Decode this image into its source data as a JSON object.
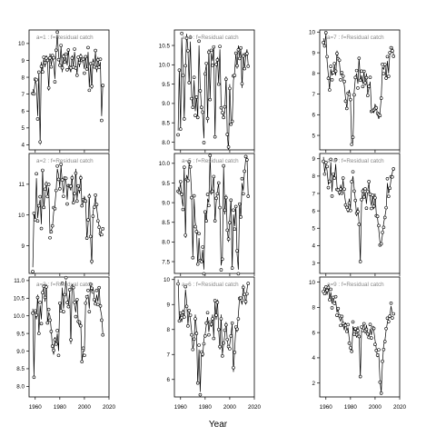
{
  "xlabel": "Year",
  "chart_data": [
    {
      "type": "line",
      "panel_label": "a=1 : f=Residual catch",
      "xlim": [
        1955,
        2020
      ],
      "ylim": [
        3.7,
        10.8
      ],
      "yticks": [
        4,
        5,
        6,
        7,
        8,
        9,
        10
      ],
      "xticks": [
        1960,
        1980,
        2000,
        2020
      ],
      "x": [
        1958,
        1959,
        1960,
        1961,
        1962,
        1963,
        1964,
        1965,
        1966,
        1967,
        1968,
        1969,
        1970,
        1971,
        1972,
        1973,
        1974,
        1975,
        1976,
        1977,
        1978,
        1979,
        1980,
        1981,
        1982,
        1983,
        1984,
        1985,
        1986,
        1987,
        1988,
        1989,
        1990,
        1991,
        1992,
        1993,
        1994,
        1995,
        1996,
        1997,
        1998,
        1999,
        2000,
        2001,
        2002,
        2003,
        2004,
        2005,
        2006,
        2007,
        2008,
        2009,
        2010,
        2011,
        2012,
        2013,
        2014,
        2015
      ],
      "y": [
        7.3,
        7.1,
        7.8,
        7.6,
        5.7,
        8.3,
        4.0,
        8.9,
        8.4,
        9.1,
        8.6,
        9.3,
        9.0,
        7.2,
        9.4,
        8.7,
        9.2,
        8.9,
        7.9,
        9.6,
        10.5,
        9.3,
        8.8,
        9.8,
        8.3,
        9.4,
        8.9,
        9.2,
        8.7,
        9.7,
        8.5,
        8.3,
        9.3,
        8.6,
        9.5,
        8.8,
        8.2,
        9.1,
        8.6,
        9.4,
        9.0,
        8.9,
        8.5,
        9.3,
        8.4,
        9.5,
        7.4,
        8.8,
        7.3,
        9.1,
        8.7,
        9.5,
        8.3,
        9.2,
        8.6,
        8.9,
        5.7,
        7.6
      ]
    },
    {
      "type": "line",
      "panel_label": "a=4 : f=Residual catch",
      "xlim": [
        1955,
        2020
      ],
      "ylim": [
        7.8,
        10.9
      ],
      "yticks": [
        8.0,
        8.5,
        9.0,
        9.5,
        10.0,
        10.5
      ],
      "xticks": [
        1960,
        1980,
        2000,
        2020
      ],
      "x": [
        1958,
        1959,
        1960,
        1961,
        1962,
        1963,
        1964,
        1965,
        1966,
        1967,
        1968,
        1969,
        1970,
        1971,
        1972,
        1973,
        1974,
        1975,
        1976,
        1977,
        1978,
        1979,
        1980,
        1981,
        1982,
        1983,
        1984,
        1985,
        1986,
        1987,
        1988,
        1989,
        1990,
        1991,
        1992,
        1993,
        1994,
        1995,
        1996,
        1997,
        1998,
        1999,
        2000,
        2001,
        2002,
        2003,
        2004,
        2005,
        2006,
        2007,
        2008,
        2009,
        2010,
        2011,
        2012,
        2013,
        2014,
        2015
      ],
      "y": [
        8.3,
        9.9,
        8.3,
        10.7,
        9.8,
        8.6,
        9.9,
        10.8,
        10.4,
        9.5,
        10.6,
        9.2,
        8.9,
        9.6,
        8.8,
        9.2,
        8.6,
        10.5,
        9.4,
        8.9,
        8.7,
        8.1,
        9.8,
        10.0,
        8.5,
        10.4,
        9.1,
        10.3,
        10.1,
        10.5,
        8.1,
        9.9,
        10.2,
        9.5,
        10.4,
        9.0,
        8.8,
        8.6,
        8.8,
        9.7,
        8.2,
        7.8,
        9.5,
        8.5,
        8.5,
        9.6,
        9.8,
        10.3,
        9.9,
        10.5,
        10.2,
        10.4,
        9.4,
        10.3,
        9.9,
        10.2,
        10.4,
        10.0
      ]
    },
    {
      "type": "line",
      "panel_label": "a=7 : f=Residual catch",
      "xlim": [
        1955,
        2020
      ],
      "ylim": [
        4.3,
        10.1
      ],
      "yticks": [
        5,
        6,
        7,
        8,
        9,
        10
      ],
      "xticks": [
        1960,
        1980,
        2000,
        2020
      ],
      "x": [
        1958,
        1959,
        1960,
        1961,
        1962,
        1963,
        1964,
        1965,
        1966,
        1967,
        1968,
        1969,
        1970,
        1971,
        1972,
        1973,
        1974,
        1975,
        1976,
        1977,
        1978,
        1979,
        1980,
        1981,
        1982,
        1983,
        1984,
        1985,
        1986,
        1987,
        1988,
        1989,
        1990,
        1991,
        1992,
        1993,
        1994,
        1995,
        1996,
        1997,
        1998,
        1999,
        2000,
        2001,
        2002,
        2003,
        2004,
        2005,
        2006,
        2007,
        2008,
        2009,
        2010,
        2011,
        2012,
        2013,
        2014,
        2015
      ],
      "y": [
        9.7,
        9.4,
        9.9,
        8.6,
        7.9,
        7.2,
        8.2,
        7.9,
        8.1,
        8.4,
        7.9,
        9.1,
        8.7,
        8.5,
        7.9,
        8.1,
        7.8,
        7.4,
        6.8,
        6.3,
        6.9,
        7.2,
        6.8,
        4.5,
        4.7,
        7.1,
        7.8,
        8.0,
        7.5,
        8.8,
        7.6,
        7.9,
        7.5,
        8.1,
        7.4,
        8.0,
        7.0,
        7.3,
        7.6,
        6.3,
        6.2,
        6.1,
        6.5,
        6.4,
        6.0,
        5.8,
        6.1,
        6.8,
        8.3,
        8.2,
        8.5,
        7.7,
        8.6,
        8.0,
        9.0,
        9.1,
        9.3,
        8.9
      ]
    },
    {
      "type": "line",
      "panel_label": "a=2 : f=Residual catch",
      "xlim": [
        1955,
        2020
      ],
      "ylim": [
        8.1,
        12.0
      ],
      "yticks": [
        9,
        10,
        11
      ],
      "xticks": [
        1960,
        1980,
        2000,
        2020
      ],
      "x": [
        1958,
        1959,
        1960,
        1961,
        1962,
        1963,
        1964,
        1965,
        1966,
        1967,
        1968,
        1969,
        1970,
        1971,
        1972,
        1973,
        1974,
        1975,
        1976,
        1977,
        1978,
        1979,
        1980,
        1981,
        1982,
        1983,
        1984,
        1985,
        1986,
        1987,
        1988,
        1989,
        1990,
        1991,
        1992,
        1993,
        1994,
        1995,
        1996,
        1997,
        1998,
        1999,
        2000,
        2001,
        2002,
        2003,
        2004,
        2005,
        2006,
        2007,
        2008,
        2009,
        2010,
        2011,
        2012,
        2013,
        2014,
        2015
      ],
      "y": [
        8.3,
        10.1,
        9.8,
        11.2,
        9.9,
        10.3,
        10.5,
        9.7,
        11.5,
        10.2,
        10.7,
        11.1,
        10.6,
        10.9,
        9.4,
        9.5,
        9.6,
        10.1,
        10.3,
        10.8,
        11.5,
        11.3,
        10.9,
        11.6,
        11.0,
        10.7,
        11.2,
        11.1,
        10.5,
        11.0,
        10.9,
        10.8,
        11.3,
        10.4,
        10.6,
        11.5,
        10.5,
        10.9,
        10.7,
        11.3,
        10.3,
        10.4,
        10.6,
        10.5,
        9.2,
        9.7,
        10.7,
        9.3,
        8.4,
        10.1,
        10.3,
        10.6,
        10.2,
        9.9,
        9.6,
        9.3,
        9.5,
        9.6
      ]
    },
    {
      "type": "line",
      "panel_label": "a=5 : f=Residual catch",
      "xlim": [
        1955,
        2020
      ],
      "ylim": [
        7.2,
        10.25
      ],
      "yticks": [
        7.5,
        8.0,
        8.5,
        9.0,
        9.5,
        10.0
      ],
      "xticks": [
        1960,
        1980,
        2000,
        2020
      ],
      "x": [
        1958,
        1959,
        1960,
        1961,
        1962,
        1963,
        1964,
        1965,
        1966,
        1967,
        1968,
        1969,
        1970,
        1971,
        1972,
        1973,
        1974,
        1975,
        1976,
        1977,
        1978,
        1979,
        1980,
        1981,
        1982,
        1983,
        1984,
        1985,
        1986,
        1987,
        1988,
        1989,
        1990,
        1991,
        1992,
        1993,
        1994,
        1995,
        1996,
        1997,
        1998,
        1999,
        2000,
        2001,
        2002,
        2003,
        2004,
        2005,
        2006,
        2007,
        2008,
        2009,
        2010,
        2011,
        2012,
        2013,
        2014,
        2015
      ],
      "y": [
        9.4,
        9.3,
        9.5,
        9.1,
        8.9,
        9.9,
        8.1,
        9.7,
        9.6,
        10.0,
        9.8,
        9.2,
        7.6,
        9.1,
        8.5,
        8.3,
        7.4,
        8.1,
        7.6,
        7.5,
        7.8,
        7.3,
        8.8,
        8.5,
        9.1,
        9.0,
        10.2,
        9.2,
        9.4,
        9.7,
        8.5,
        9.0,
        9.3,
        9.5,
        8.8,
        7.4,
        7.6,
        9.9,
        8.7,
        9.2,
        8.3,
        8.0,
        8.6,
        9.1,
        7.3,
        8.7,
        8.4,
        8.9,
        7.7,
        7.3,
        9.0,
        8.6,
        9.5,
        9.3,
        9.8,
        10.1,
        10.2,
        9.2
      ]
    },
    {
      "type": "line",
      "panel_label": "a=8 : f=Residual catch",
      "xlim": [
        1955,
        2020
      ],
      "ylim": [
        2.4,
        9.3
      ],
      "yticks": [
        3,
        4,
        5,
        6,
        7,
        8,
        9
      ],
      "xticks": [
        1960,
        1980,
        2000,
        2020
      ],
      "x": [
        1958,
        1959,
        1960,
        1961,
        1962,
        1963,
        1964,
        1965,
        1966,
        1967,
        1968,
        1969,
        1970,
        1971,
        1972,
        1973,
        1974,
        1975,
        1976,
        1977,
        1978,
        1979,
        1980,
        1981,
        1982,
        1983,
        1984,
        1985,
        1986,
        1987,
        1988,
        1989,
        1990,
        1991,
        1992,
        1993,
        1994,
        1995,
        1996,
        1997,
        1998,
        1999,
        2000,
        2001,
        2002,
        2003,
        2004,
        2005,
        2006,
        2007,
        2008,
        2009,
        2010,
        2011,
        2012,
        2013,
        2014,
        2015
      ],
      "y": [
        9.1,
        8.2,
        8.7,
        8.3,
        7.5,
        7.7,
        8.8,
        7.1,
        8.2,
        7.8,
        8.7,
        7.4,
        7.2,
        6.9,
        7.5,
        7.1,
        7.8,
        7.0,
        6.5,
        6.2,
        5.9,
        6.7,
        6.1,
        7.6,
        8.0,
        7.3,
        6.6,
        5.7,
        6.2,
        5.3,
        3.0,
        6.4,
        7.3,
        6.8,
        7.1,
        6.4,
        7.2,
        7.6,
        6.7,
        6.3,
        6.9,
        6.1,
        7.0,
        5.8,
        5.6,
        4.9,
        4.2,
        4.1,
        4.6,
        5.3,
        5.7,
        6.1,
        7.6,
        7.0,
        7.3,
        7.8,
        8.2,
        8.5
      ]
    },
    {
      "type": "line",
      "panel_label": "a=3 : f=Residual catch",
      "xlim": [
        1955,
        2020
      ],
      "ylim": [
        7.7,
        11.1
      ],
      "yticks": [
        8.0,
        8.5,
        9.0,
        9.5,
        10.0,
        10.5,
        11.0
      ],
      "xticks": [
        1960,
        1980,
        2000,
        2020
      ],
      "x": [
        1958,
        1959,
        1960,
        1961,
        1962,
        1963,
        1964,
        1965,
        1966,
        1967,
        1968,
        1969,
        1970,
        1971,
        1972,
        1973,
        1974,
        1975,
        1976,
        1977,
        1978,
        1979,
        1980,
        1981,
        1982,
        1983,
        1984,
        1985,
        1986,
        1987,
        1988,
        1989,
        1990,
        1991,
        1992,
        1993,
        1994,
        1995,
        1996,
        1997,
        1998,
        1999,
        2000,
        2001,
        2002,
        2003,
        2004,
        2005,
        2006,
        2007,
        2008,
        2009,
        2010,
        2011,
        2012,
        2013,
        2014,
        2015
      ],
      "y": [
        10.2,
        8.3,
        10.1,
        9.9,
        10.6,
        9.5,
        10.3,
        9.9,
        10.7,
        10.8,
        10.4,
        10.9,
        9.8,
        10.1,
        10.0,
        9.6,
        9.1,
        8.9,
        9.4,
        9.2,
        9.5,
        9.0,
        10.4,
        10.1,
        10.8,
        10.2,
        10.6,
        11.0,
        10.5,
        10.3,
        10.7,
        9.2,
        10.9,
        10.8,
        10.3,
        10.1,
        10.5,
        9.8,
        9.7,
        9.8,
        8.7,
        9.0,
        9.0,
        10.4,
        10.5,
        10.6,
        10.2,
        10.9,
        10.7,
        10.8,
        10.5,
        10.3,
        10.6,
        10.4,
        10.8,
        10.2,
        10.0,
        9.5
      ]
    },
    {
      "type": "line",
      "panel_label": "a=6 : f=Residual catch",
      "xlim": [
        1955,
        2020
      ],
      "ylim": [
        5.3,
        10.1
      ],
      "yticks": [
        6,
        7,
        8,
        9,
        10
      ],
      "xticks": [
        1960,
        1980,
        2000,
        2020
      ],
      "x": [
        1958,
        1959,
        1960,
        1961,
        1962,
        1963,
        1964,
        1965,
        1966,
        1967,
        1968,
        1969,
        1970,
        1971,
        1972,
        1973,
        1974,
        1975,
        1976,
        1977,
        1978,
        1979,
        1980,
        1981,
        1982,
        1983,
        1984,
        1985,
        1986,
        1987,
        1988,
        1989,
        1990,
        1991,
        1992,
        1993,
        1994,
        1995,
        1996,
        1997,
        1998,
        1999,
        2000,
        2001,
        2002,
        2003,
        2004,
        2005,
        2006,
        2007,
        2008,
        2009,
        2010,
        2011,
        2012,
        2013,
        2014,
        2015
      ],
      "y": [
        10.0,
        8.4,
        8.6,
        8.3,
        8.8,
        8.5,
        9.6,
        9.1,
        8.2,
        8.7,
        8.4,
        7.9,
        7.2,
        7.5,
        8.6,
        7.9,
        5.8,
        7.2,
        5.5,
        7.1,
        6.9,
        7.6,
        7.8,
        8.2,
        8.5,
        7.9,
        8.3,
        8.1,
        8.6,
        7.7,
        9.1,
        8.4,
        9.2,
        8.0,
        7.2,
        8.6,
        7.0,
        7.4,
        7.8,
        8.3,
        7.6,
        7.2,
        7.4,
        7.8,
        8.2,
        6.3,
        7.2,
        8.1,
        7.9,
        8.6,
        9.3,
        9.2,
        9.0,
        9.8,
        9.4,
        9.0,
        9.6,
        9.9
      ]
    },
    {
      "type": "line",
      "panel_label": "a=9 : f=Residual catch",
      "xlim": [
        1955,
        2020
      ],
      "ylim": [
        0.9,
        10.4
      ],
      "yticks": [
        2,
        4,
        6,
        8,
        10
      ],
      "xticks": [
        1960,
        1980,
        2000,
        2020
      ],
      "x": [
        1958,
        1959,
        1960,
        1961,
        1962,
        1963,
        1964,
        1965,
        1966,
        1967,
        1968,
        1969,
        1970,
        1971,
        1972,
        1973,
        1974,
        1975,
        1976,
        1977,
        1978,
        1979,
        1980,
        1981,
        1982,
        1983,
        1984,
        1985,
        1986,
        1987,
        1988,
        1989,
        1990,
        1991,
        1992,
        1993,
        1994,
        1995,
        1996,
        1997,
        1998,
        1999,
        2000,
        2001,
        2002,
        2003,
        2004,
        2005,
        2006,
        2007,
        2008,
        2009,
        2010,
        2011,
        2012,
        2013,
        2014,
        2015
      ],
      "y": [
        9.6,
        9.2,
        9.5,
        9.0,
        9.8,
        8.6,
        9.2,
        8.3,
        8.9,
        8.2,
        8.5,
        7.6,
        7.9,
        7.1,
        6.9,
        7.4,
        6.6,
        6.2,
        6.8,
        6.1,
        6.4,
        5.5,
        4.9,
        4.4,
        6.5,
        6.1,
        6.3,
        5.6,
        6.5,
        5.8,
        2.4,
        6.1,
        6.4,
        6.7,
        5.9,
        6.6,
        6.0,
        5.5,
        6.3,
        5.8,
        6.4,
        6.1,
        5.4,
        4.7,
        4.1,
        4.3,
        2.3,
        1.2,
        3.5,
        5.0,
        5.4,
        6.2,
        6.8,
        7.1,
        7.3,
        8.1,
        7.5,
        7.6
      ]
    }
  ]
}
